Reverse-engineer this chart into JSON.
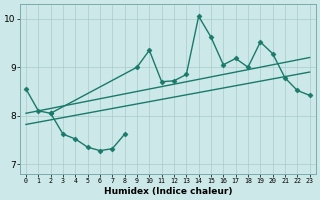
{
  "xlabel": "Humidex (Indice chaleur)",
  "xlim": [
    -0.5,
    23.5
  ],
  "ylim": [
    6.8,
    10.3
  ],
  "xticks": [
    0,
    1,
    2,
    3,
    4,
    5,
    6,
    7,
    8,
    9,
    10,
    11,
    12,
    13,
    14,
    15,
    16,
    17,
    18,
    19,
    20,
    21,
    22,
    23
  ],
  "yticks": [
    7,
    8,
    9,
    10
  ],
  "bg_color": "#cce8e8",
  "grid_color": "#aacccc",
  "line_color": "#1a7a6a",
  "series": [
    {
      "x": [
        0,
        1,
        2,
        9,
        10,
        11,
        12,
        13,
        14,
        15,
        16,
        17,
        18,
        19,
        20,
        21,
        22,
        23
      ],
      "y": [
        8.55,
        8.1,
        8.05,
        9.0,
        9.35,
        8.7,
        8.72,
        8.85,
        10.05,
        9.62,
        9.05,
        9.18,
        9.0,
        9.52,
        9.28,
        8.78,
        8.52,
        8.42
      ],
      "marker": "D",
      "ms": 2.5,
      "lw": 1.0,
      "ls": "-"
    },
    {
      "x": [
        0,
        23
      ],
      "y": [
        8.05,
        9.2
      ],
      "marker": null,
      "ms": 0,
      "lw": 1.0,
      "ls": "-"
    },
    {
      "x": [
        0,
        23
      ],
      "y": [
        7.82,
        8.9
      ],
      "marker": null,
      "ms": 0,
      "lw": 1.0,
      "ls": "-"
    },
    {
      "x": [
        2,
        3,
        4,
        5,
        6,
        7,
        8
      ],
      "y": [
        8.05,
        7.62,
        7.52,
        7.35,
        7.28,
        7.32,
        7.62
      ],
      "marker": "D",
      "ms": 2.5,
      "lw": 1.0,
      "ls": "-"
    }
  ]
}
